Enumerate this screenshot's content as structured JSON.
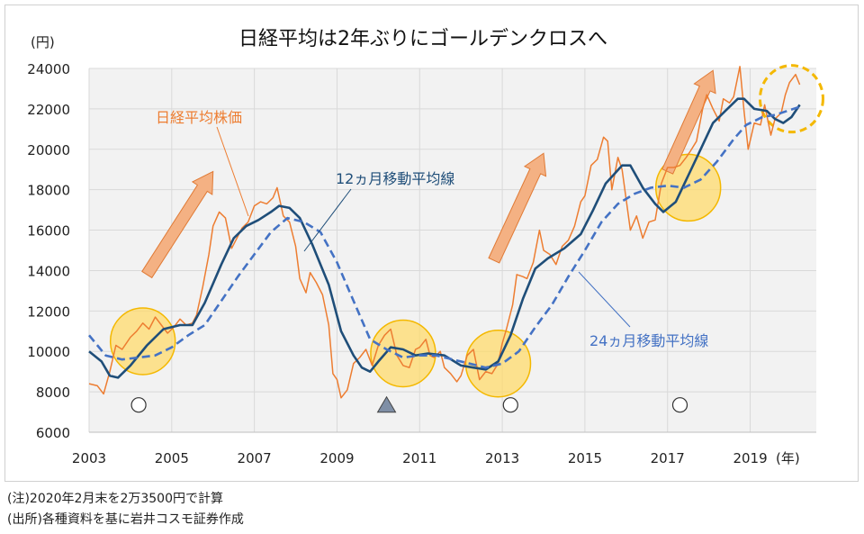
{
  "chart_data": {
    "type": "line",
    "title": "日経平均は2年ぶりにゴールデンクロスへ",
    "y_unit_label": "(円)",
    "x_unit_label": "(年)",
    "xlim": [
      2003.0,
      2020.6
    ],
    "ylim": [
      6000,
      24000
    ],
    "x_ticks": [
      {
        "value": 2003,
        "label": "2003"
      },
      {
        "value": 2005,
        "label": "2005"
      },
      {
        "value": 2007,
        "label": "2007"
      },
      {
        "value": 2009,
        "label": "2009"
      },
      {
        "value": 2011,
        "label": "2011"
      },
      {
        "value": 2013,
        "label": "2013"
      },
      {
        "value": 2015,
        "label": "2015"
      },
      {
        "value": 2017,
        "label": "2017"
      },
      {
        "value": 2019,
        "label": "2019"
      }
    ],
    "y_ticks": [
      {
        "value": 6000,
        "label": "6000"
      },
      {
        "value": 8000,
        "label": "8000"
      },
      {
        "value": 10000,
        "label": "10000"
      },
      {
        "value": 12000,
        "label": "12000"
      },
      {
        "value": 14000,
        "label": "14000"
      },
      {
        "value": 16000,
        "label": "16000"
      },
      {
        "value": 18000,
        "label": "18000"
      },
      {
        "value": 20000,
        "label": "20000"
      },
      {
        "value": 22000,
        "label": "22000"
      },
      {
        "value": 24000,
        "label": "24000"
      }
    ],
    "series": [
      {
        "name": "日経平均株価",
        "color": "#ED7D31",
        "style": "solid",
        "width": 1.5,
        "points": [
          [
            2003.0,
            8400
          ],
          [
            2003.2,
            8300
          ],
          [
            2003.35,
            7900
          ],
          [
            2003.5,
            9000
          ],
          [
            2003.65,
            10300
          ],
          [
            2003.8,
            10100
          ],
          [
            2004.0,
            10700
          ],
          [
            2004.15,
            11000
          ],
          [
            2004.3,
            11400
          ],
          [
            2004.45,
            11100
          ],
          [
            2004.6,
            11700
          ],
          [
            2004.75,
            11300
          ],
          [
            2004.9,
            10900
          ],
          [
            2005.05,
            11200
          ],
          [
            2005.2,
            11600
          ],
          [
            2005.35,
            11300
          ],
          [
            2005.5,
            11400
          ],
          [
            2005.6,
            11800
          ],
          [
            2005.75,
            13200
          ],
          [
            2005.9,
            14800
          ],
          [
            2006.0,
            16200
          ],
          [
            2006.15,
            16900
          ],
          [
            2006.3,
            16600
          ],
          [
            2006.45,
            15100
          ],
          [
            2006.55,
            15500
          ],
          [
            2006.7,
            16100
          ],
          [
            2006.85,
            16400
          ],
          [
            2007.0,
            17200
          ],
          [
            2007.15,
            17400
          ],
          [
            2007.3,
            17300
          ],
          [
            2007.45,
            17600
          ],
          [
            2007.55,
            18100
          ],
          [
            2007.7,
            16700
          ],
          [
            2007.85,
            16400
          ],
          [
            2008.0,
            15200
          ],
          [
            2008.1,
            13600
          ],
          [
            2008.25,
            12900
          ],
          [
            2008.35,
            13900
          ],
          [
            2008.5,
            13400
          ],
          [
            2008.65,
            12800
          ],
          [
            2008.8,
            11300
          ],
          [
            2008.9,
            8900
          ],
          [
            2009.0,
            8600
          ],
          [
            2009.1,
            7700
          ],
          [
            2009.25,
            8100
          ],
          [
            2009.4,
            9400
          ],
          [
            2009.55,
            9700
          ],
          [
            2009.7,
            10100
          ],
          [
            2009.85,
            9300
          ],
          [
            2010.0,
            10300
          ],
          [
            2010.15,
            10800
          ],
          [
            2010.3,
            11100
          ],
          [
            2010.45,
            9800
          ],
          [
            2010.6,
            9300
          ],
          [
            2010.75,
            9200
          ],
          [
            2010.9,
            10100
          ],
          [
            2011.0,
            10200
          ],
          [
            2011.15,
            10600
          ],
          [
            2011.25,
            9800
          ],
          [
            2011.35,
            9700
          ],
          [
            2011.5,
            10000
          ],
          [
            2011.6,
            9200
          ],
          [
            2011.75,
            8900
          ],
          [
            2011.9,
            8500
          ],
          [
            2012.0,
            8800
          ],
          [
            2012.15,
            9800
          ],
          [
            2012.3,
            10100
          ],
          [
            2012.45,
            8600
          ],
          [
            2012.6,
            9000
          ],
          [
            2012.75,
            8900
          ],
          [
            2012.9,
            9400
          ],
          [
            2013.0,
            10400
          ],
          [
            2013.1,
            11100
          ],
          [
            2013.25,
            12300
          ],
          [
            2013.35,
            13800
          ],
          [
            2013.5,
            13700
          ],
          [
            2013.6,
            13600
          ],
          [
            2013.75,
            14400
          ],
          [
            2013.9,
            16000
          ],
          [
            2014.0,
            15000
          ],
          [
            2014.15,
            14800
          ],
          [
            2014.3,
            14300
          ],
          [
            2014.45,
            15200
          ],
          [
            2014.6,
            15500
          ],
          [
            2014.75,
            16200
          ],
          [
            2014.9,
            17400
          ],
          [
            2015.0,
            17700
          ],
          [
            2015.15,
            19200
          ],
          [
            2015.3,
            19500
          ],
          [
            2015.45,
            20600
          ],
          [
            2015.55,
            20400
          ],
          [
            2015.65,
            18000
          ],
          [
            2015.8,
            19600
          ],
          [
            2015.9,
            19000
          ],
          [
            2016.0,
            17500
          ],
          [
            2016.1,
            16000
          ],
          [
            2016.25,
            16700
          ],
          [
            2016.4,
            15600
          ],
          [
            2016.55,
            16400
          ],
          [
            2016.7,
            16500
          ],
          [
            2016.85,
            18300
          ],
          [
            2017.0,
            19100
          ],
          [
            2017.15,
            19100
          ],
          [
            2017.3,
            19200
          ],
          [
            2017.45,
            19600
          ],
          [
            2017.55,
            19900
          ],
          [
            2017.7,
            20400
          ],
          [
            2017.85,
            22000
          ],
          [
            2017.95,
            22700
          ],
          [
            2018.1,
            22000
          ],
          [
            2018.25,
            21400
          ],
          [
            2018.35,
            22500
          ],
          [
            2018.5,
            22300
          ],
          [
            2018.6,
            22600
          ],
          [
            2018.75,
            24100
          ],
          [
            2018.85,
            21900
          ],
          [
            2018.95,
            20000
          ],
          [
            2019.1,
            21300
          ],
          [
            2019.25,
            21200
          ],
          [
            2019.35,
            22200
          ],
          [
            2019.5,
            20700
          ],
          [
            2019.6,
            21500
          ],
          [
            2019.75,
            21800
          ],
          [
            2019.85,
            22700
          ],
          [
            2019.95,
            23300
          ],
          [
            2020.1,
            23700
          ],
          [
            2020.2,
            23200
          ]
        ]
      },
      {
        "name": "12ヵ月移動平均線",
        "color": "#1F4E79",
        "style": "solid",
        "width": 2.6,
        "points": [
          [
            2003.0,
            10000
          ],
          [
            2003.3,
            9500
          ],
          [
            2003.5,
            8800
          ],
          [
            2003.7,
            8700
          ],
          [
            2004.0,
            9300
          ],
          [
            2004.4,
            10300
          ],
          [
            2004.8,
            11100
          ],
          [
            2005.2,
            11300
          ],
          [
            2005.5,
            11300
          ],
          [
            2005.8,
            12400
          ],
          [
            2006.2,
            14300
          ],
          [
            2006.5,
            15600
          ],
          [
            2006.8,
            16200
          ],
          [
            2007.1,
            16500
          ],
          [
            2007.4,
            16900
          ],
          [
            2007.6,
            17200
          ],
          [
            2007.85,
            17100
          ],
          [
            2008.1,
            16600
          ],
          [
            2008.4,
            15300
          ],
          [
            2008.8,
            13300
          ],
          [
            2009.1,
            11000
          ],
          [
            2009.4,
            9800
          ],
          [
            2009.6,
            9200
          ],
          [
            2009.8,
            9000
          ],
          [
            2010.0,
            9500
          ],
          [
            2010.3,
            10200
          ],
          [
            2010.6,
            10100
          ],
          [
            2010.9,
            9800
          ],
          [
            2011.2,
            9900
          ],
          [
            2011.6,
            9800
          ],
          [
            2012.0,
            9300
          ],
          [
            2012.3,
            9200
          ],
          [
            2012.6,
            9100
          ],
          [
            2012.9,
            9500
          ],
          [
            2013.2,
            10800
          ],
          [
            2013.5,
            12600
          ],
          [
            2013.8,
            14100
          ],
          [
            2014.1,
            14600
          ],
          [
            2014.5,
            15100
          ],
          [
            2014.9,
            15800
          ],
          [
            2015.2,
            17000
          ],
          [
            2015.5,
            18300
          ],
          [
            2015.9,
            19200
          ],
          [
            2016.1,
            19200
          ],
          [
            2016.4,
            18100
          ],
          [
            2016.7,
            17300
          ],
          [
            2016.9,
            16900
          ],
          [
            2017.2,
            17400
          ],
          [
            2017.5,
            18700
          ],
          [
            2017.8,
            20000
          ],
          [
            2018.1,
            21300
          ],
          [
            2018.4,
            21900
          ],
          [
            2018.7,
            22500
          ],
          [
            2018.85,
            22500
          ],
          [
            2019.1,
            22000
          ],
          [
            2019.4,
            21900
          ],
          [
            2019.6,
            21500
          ],
          [
            2019.8,
            21300
          ],
          [
            2020.0,
            21600
          ],
          [
            2020.2,
            22200
          ]
        ]
      },
      {
        "name": "24ヵ月移動平均線",
        "color": "#4472C4",
        "style": "dashed",
        "width": 2.6,
        "points": [
          [
            2003.0,
            10800
          ],
          [
            2003.4,
            9800
          ],
          [
            2003.8,
            9600
          ],
          [
            2004.2,
            9700
          ],
          [
            2004.6,
            9800
          ],
          [
            2005.0,
            10200
          ],
          [
            2005.4,
            10800
          ],
          [
            2005.8,
            11300
          ],
          [
            2006.2,
            12500
          ],
          [
            2006.6,
            13700
          ],
          [
            2007.0,
            14800
          ],
          [
            2007.4,
            15900
          ],
          [
            2007.8,
            16600
          ],
          [
            2008.2,
            16400
          ],
          [
            2008.6,
            15900
          ],
          [
            2009.0,
            14400
          ],
          [
            2009.4,
            12500
          ],
          [
            2009.8,
            10600
          ],
          [
            2010.2,
            10100
          ],
          [
            2010.6,
            9700
          ],
          [
            2011.0,
            9800
          ],
          [
            2011.4,
            9800
          ],
          [
            2011.8,
            9600
          ],
          [
            2012.2,
            9400
          ],
          [
            2012.6,
            9200
          ],
          [
            2013.0,
            9400
          ],
          [
            2013.4,
            10000
          ],
          [
            2013.8,
            11200
          ],
          [
            2014.2,
            12300
          ],
          [
            2014.6,
            13700
          ],
          [
            2015.0,
            15000
          ],
          [
            2015.4,
            16400
          ],
          [
            2015.8,
            17300
          ],
          [
            2016.2,
            17800
          ],
          [
            2016.6,
            18100
          ],
          [
            2017.0,
            18200
          ],
          [
            2017.4,
            18100
          ],
          [
            2017.8,
            18500
          ],
          [
            2018.2,
            19400
          ],
          [
            2018.6,
            20500
          ],
          [
            2018.9,
            21200
          ],
          [
            2019.3,
            21600
          ],
          [
            2019.6,
            21700
          ],
          [
            2019.9,
            21900
          ],
          [
            2020.2,
            22100
          ]
        ]
      }
    ],
    "annotations": [
      {
        "text": "日経平均株価",
        "color": "#ED7D31"
      },
      {
        "text": "12ヵ月移動平均線",
        "color": "#1F4E79"
      },
      {
        "text": "24ヵ月移動平均線",
        "color": "#4472C4"
      }
    ],
    "markers": [
      {
        "x": 2004.2,
        "y": 7350,
        "kind": "circle"
      },
      {
        "x": 2010.2,
        "y": 7350,
        "kind": "triangle"
      },
      {
        "x": 2013.2,
        "y": 7350,
        "kind": "circle"
      },
      {
        "x": 2017.3,
        "y": 7350,
        "kind": "circle"
      }
    ],
    "highlights": [
      {
        "x": 2004.3,
        "y": 10500,
        "style": "filled"
      },
      {
        "x": 2010.6,
        "y": 9900,
        "style": "filled"
      },
      {
        "x": 2012.9,
        "y": 9400,
        "style": "filled"
      },
      {
        "x": 2017.5,
        "y": 18100,
        "style": "filled"
      },
      {
        "x": 2020.0,
        "y": 22500,
        "style": "dashed"
      }
    ],
    "trend_arrows": [
      {
        "x0": 2004.4,
        "y0": 13800,
        "x1": 2006.0,
        "y1": 18900
      },
      {
        "x0": 2012.8,
        "y0": 14500,
        "x1": 2014.0,
        "y1": 19800
      },
      {
        "x0": 2017.0,
        "y0": 18900,
        "x1": 2018.1,
        "y1": 23900
      }
    ],
    "colors": {
      "plot_bg": "#F2F2F2",
      "grid": "#D9D9D9",
      "highlight_fill": "#FFD966",
      "highlight_stroke": "#F4B800",
      "arrow_fill": "#F4B183",
      "arrow_stroke": "#E07A35",
      "triangle": "#7F8FA6"
    }
  },
  "notes": [
    "(注)2020年2月末を2万3500円で計算",
    "(出所)各種資料を基に岩井コスモ証券作成"
  ]
}
